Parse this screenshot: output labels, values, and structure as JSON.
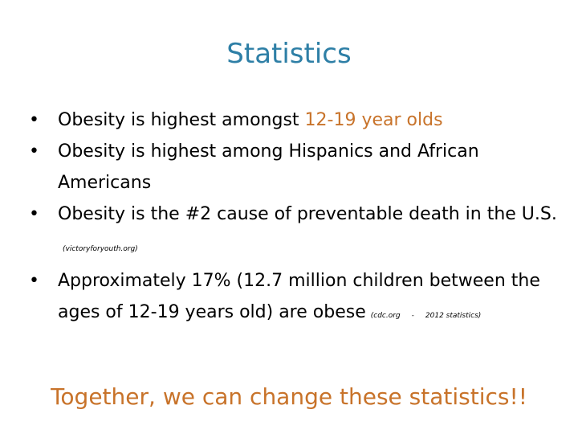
{
  "slide": {
    "title": "Statistics",
    "bullets": [
      {
        "text": "Obesity is highest amongst ",
        "accent": "12-19 year olds"
      },
      {
        "text": "Obesity is highest among Hispanics and African Americans"
      },
      {
        "text": "Obesity is the #2 cause of preventable death in the U.S.",
        "citation": "(victoryforyouth.org)"
      },
      {
        "text": "Approximately 17% (12.7 million children between the ages of 12-19 years old) are obese",
        "citation_source": "(cdc.org",
        "citation_dash": "-",
        "citation_note": "2012 statistics)"
      }
    ],
    "footer": "Together, we can change these statistics!!"
  },
  "colors": {
    "title": "#2e7fa6",
    "accent": "#c8732a",
    "text": "#000000",
    "background": "#ffffff"
  }
}
